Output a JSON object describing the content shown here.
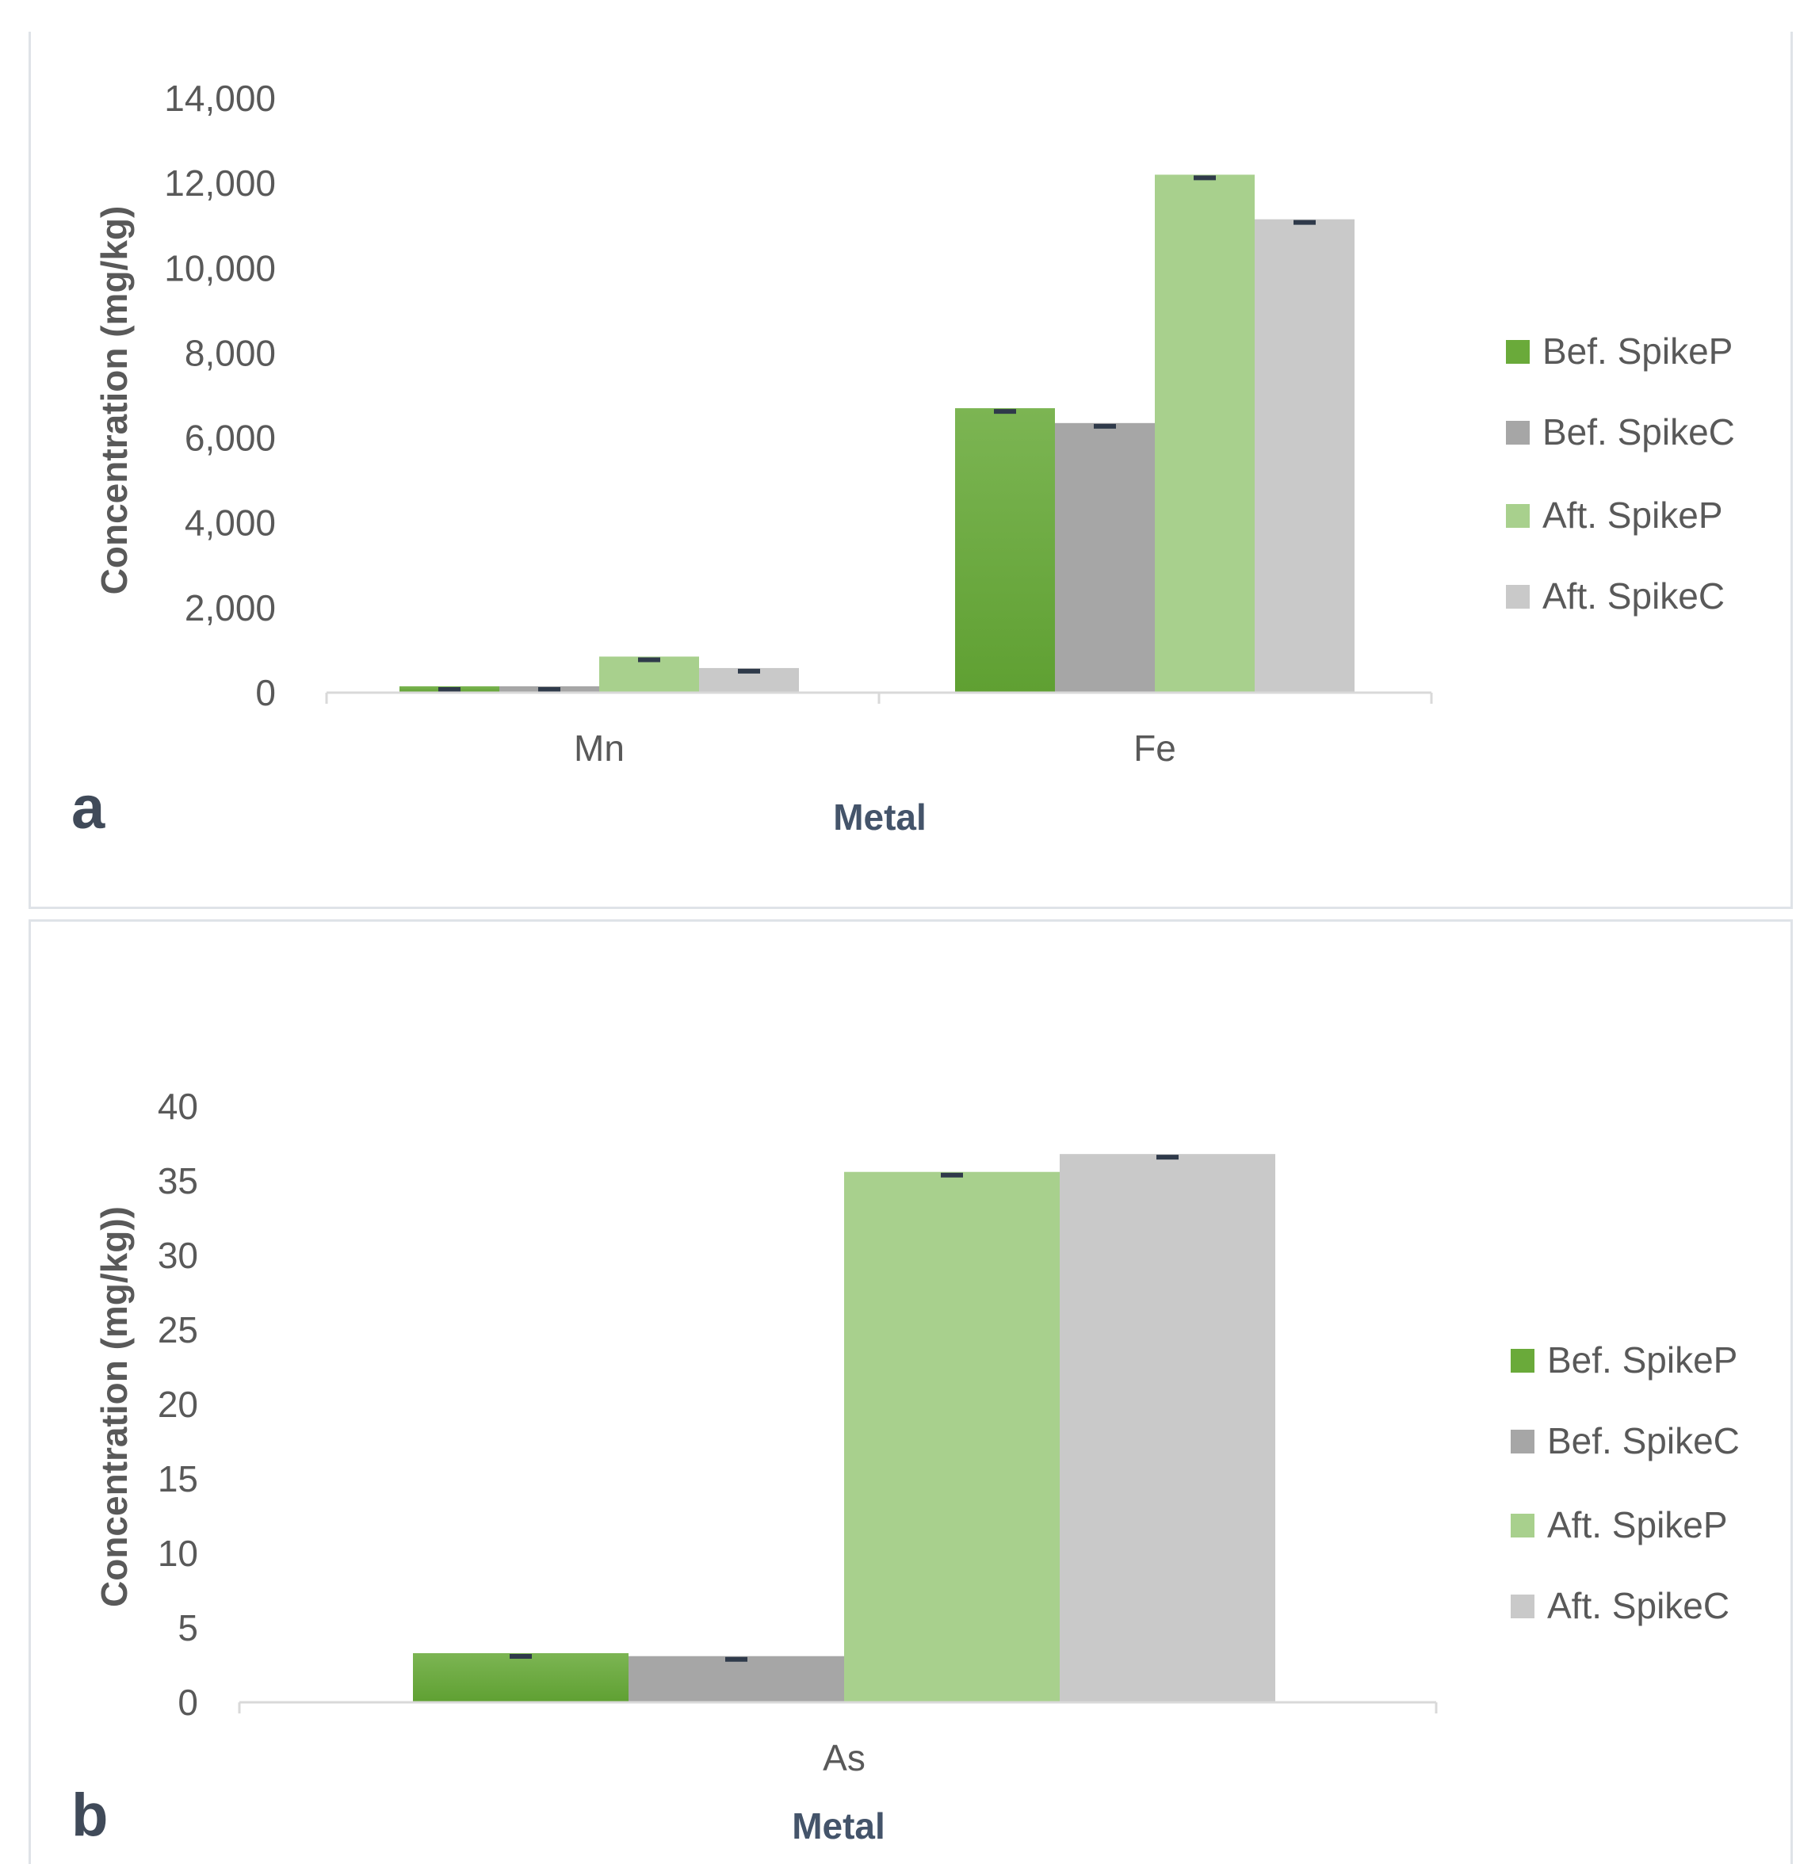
{
  "colors": {
    "bef_spike_p": "#6aaa3a",
    "bef_spike_c": "#a6a6a6",
    "aft_spike_p": "#a8d08d",
    "aft_spike_c": "#c9c9c9",
    "axis": "#d9d9d9",
    "error_bar": "#2f3a4a"
  },
  "chart_data": [
    {
      "type": "bar",
      "panel_label": "a",
      "xlabel": "Metal",
      "ylabel": "Concentration (mg/kg)",
      "ylim": [
        0,
        14000
      ],
      "yticks": [
        0,
        2000,
        4000,
        6000,
        8000,
        10000,
        12000,
        14000
      ],
      "ytick_labels": [
        "0",
        "2,000",
        "4,000",
        "6,000",
        "8,000",
        "10,000",
        "12,000",
        "14,000"
      ],
      "categories": [
        "Mn",
        "Fe"
      ],
      "series": [
        {
          "name": "Bef. SpikeP",
          "values": [
            150,
            6700
          ]
        },
        {
          "name": "Bef. SpikeC",
          "values": [
            150,
            6350
          ]
        },
        {
          "name": "Aft. SpikeP",
          "values": [
            850,
            12200
          ]
        },
        {
          "name": "Aft. SpikeC",
          "values": [
            580,
            11150
          ]
        }
      ],
      "legend_position": "right",
      "grid": false
    },
    {
      "type": "bar",
      "panel_label": "b",
      "xlabel": "Metal",
      "ylabel": "Concentration (mg/kg))",
      "ylim": [
        0,
        40
      ],
      "yticks": [
        0,
        5,
        10,
        15,
        20,
        25,
        30,
        35,
        40
      ],
      "ytick_labels": [
        "0",
        "5",
        "10",
        "15",
        "20",
        "25",
        "30",
        "35",
        "40"
      ],
      "categories": [
        "As"
      ],
      "series": [
        {
          "name": "Bef. SpikeP",
          "values": [
            3.3
          ]
        },
        {
          "name": "Bef. SpikeC",
          "values": [
            3.1
          ]
        },
        {
          "name": "Aft. SpikeP",
          "values": [
            35.6
          ]
        },
        {
          "name": "Aft. SpikeC",
          "values": [
            36.8
          ]
        }
      ],
      "legend_position": "right",
      "grid": false
    }
  ]
}
